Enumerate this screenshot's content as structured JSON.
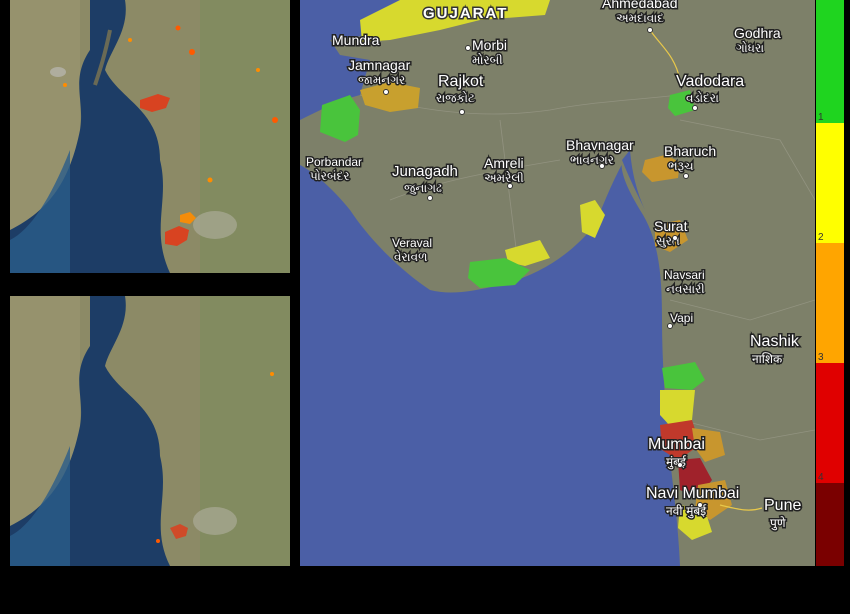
{
  "map_labels": {
    "state": "GUJARAT",
    "cities": [
      {
        "name": "Ahmedabad",
        "local": "અમદાવાદ"
      },
      {
        "name": "Godhra",
        "local": "ગોધરા"
      },
      {
        "name": "Mundra",
        "local": ""
      },
      {
        "name": "Morbi",
        "local": "મોરબી"
      },
      {
        "name": "Jamnagar",
        "local": "જામનગર"
      },
      {
        "name": "Rajkot",
        "local": "રાજકોટ"
      },
      {
        "name": "Vadodara",
        "local": "વડોદરા"
      },
      {
        "name": "Bhavnagar",
        "local": "ભાવનગર"
      },
      {
        "name": "Bharuch",
        "local": "ભરૂચ"
      },
      {
        "name": "Porbandar",
        "local": "પોરબંદર"
      },
      {
        "name": "Junagadh",
        "local": "જુનાગઢ"
      },
      {
        "name": "Amreli",
        "local": "અમરેલી"
      },
      {
        "name": "Surat",
        "local": "સુરત"
      },
      {
        "name": "Veraval",
        "local": "વેરાવળ"
      },
      {
        "name": "Navsari",
        "local": "નવસારી"
      },
      {
        "name": "Vapi",
        "local": ""
      },
      {
        "name": "Nashik",
        "local": "नाशिक"
      },
      {
        "name": "Mumbai",
        "local": "मुंबई"
      },
      {
        "name": "Navi Mumbai",
        "local": "नवी मुंबई"
      },
      {
        "name": "Pune",
        "local": "पुणे"
      }
    ]
  },
  "legend": {
    "ticks": [
      "1",
      "2",
      "3",
      "4"
    ],
    "colors": [
      "#1fd41f",
      "#ffff00",
      "#ffa500",
      "#e00000",
      "#7a0000"
    ]
  },
  "colors": {
    "sea": "#4a5fa8",
    "land": "#7f836b",
    "sat_water": "#1f3f66",
    "sat_land": "#8a8a66"
  }
}
